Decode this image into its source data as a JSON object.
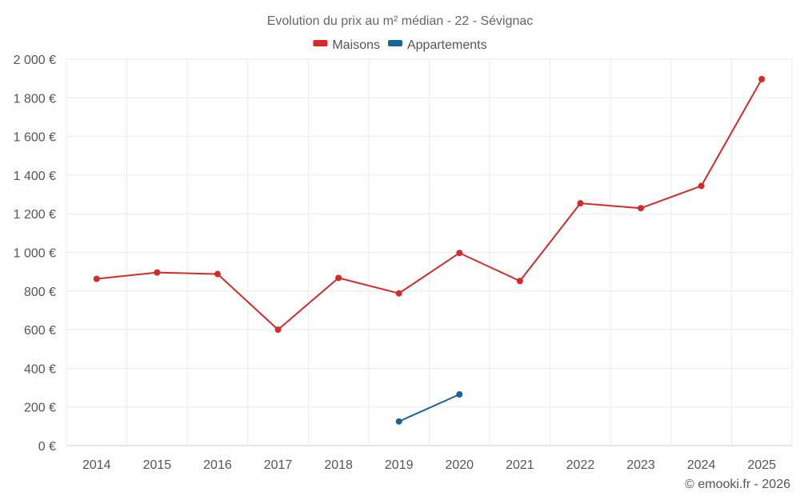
{
  "chart_data": {
    "type": "line",
    "title": "Evolution du prix au m² médian - 22 - Sévignac",
    "categories": [
      "2014",
      "2015",
      "2016",
      "2017",
      "2018",
      "2019",
      "2020",
      "2021",
      "2022",
      "2023",
      "2024",
      "2025"
    ],
    "series": [
      {
        "name": "Maisons",
        "color": "#d42a2a",
        "values": [
          863,
          896,
          888,
          600,
          868,
          788,
          997,
          852,
          1254,
          1229,
          1344,
          1897
        ]
      },
      {
        "name": "Appartements",
        "color": "#1a6496",
        "values": [
          null,
          null,
          null,
          null,
          null,
          125,
          265,
          null,
          null,
          null,
          null,
          null
        ]
      }
    ],
    "ylim": [
      0,
      2000
    ],
    "yticks": [
      0,
      200,
      400,
      600,
      800,
      1000,
      1200,
      1400,
      1600,
      1800,
      2000
    ],
    "ytick_labels": [
      "0 €",
      "200 €",
      "400 €",
      "600 €",
      "800 €",
      "1 000 €",
      "1 200 €",
      "1 400 €",
      "1 600 €",
      "1 800 €",
      "2 000 €"
    ],
    "legend_position": "top-center",
    "grid": true,
    "credit": "© emooki.fr - 2026"
  }
}
